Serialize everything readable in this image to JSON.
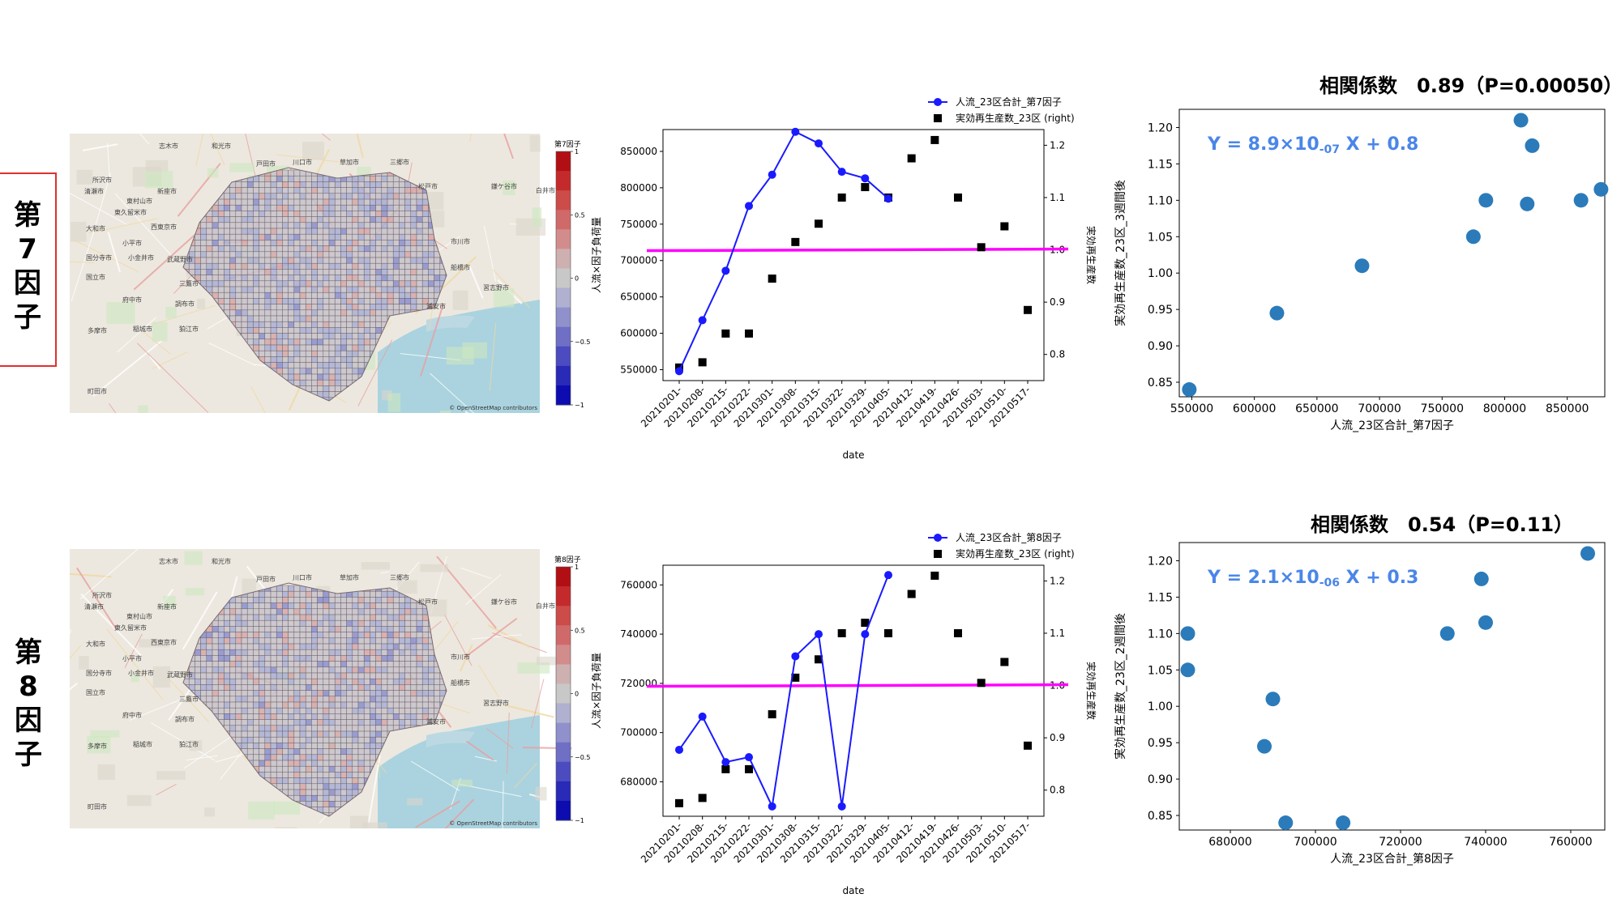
{
  "rows": [
    {
      "factor_label": [
        "第",
        "7",
        "因",
        "子"
      ],
      "boxed": true,
      "map": {
        "colorbar_title": "第7因子",
        "colorbar_ticks": [
          "1",
          "0.5",
          "0",
          "−0.5",
          "−1"
        ],
        "attribution": "© OpenStreetMap contributors",
        "place_labels": [
          "志木市",
          "和光市",
          "戸田市",
          "川口市",
          "草加市",
          "三郷市",
          "所沢市",
          "東村山市",
          "清瀬市",
          "新座市",
          "東久留米市",
          "大和市",
          "西東京市",
          "小平市",
          "国分寺市",
          "小金井市",
          "武蔵野市",
          "三鷹市",
          "国立市",
          "府中市",
          "調布市",
          "狛江市",
          "多摩市",
          "稲城市",
          "町田市",
          "松戸市",
          "市川市",
          "船橋市",
          "浦安市",
          "習志野市",
          "鎌ケ谷市",
          "白井市"
        ]
      },
      "timeseries": {
        "legend": [
          "人流_23区合計_第7因子",
          "実効再生産数_23区 (right)"
        ],
        "xlabel": "date",
        "ylabel_left": "人流×因子負荷量",
        "ylabel_right": "実効再生産数",
        "left_ticks": [
          "550000",
          "600000",
          "650000",
          "700000",
          "750000",
          "800000",
          "850000"
        ],
        "right_ticks": [
          "0.8",
          "0.9",
          "1.0",
          "1.1",
          "1.2"
        ],
        "date_ticks": [
          "20210201-",
          "20210208-",
          "20210215-",
          "20210222-",
          "20210301-",
          "20210308-",
          "20210315-",
          "20210322-",
          "20210329-",
          "20210405-",
          "20210412-",
          "20210419-",
          "20210426-",
          "20210503-",
          "20210510-",
          "20210517-"
        ]
      },
      "corr_title": "相関係数　0.89（P=0.00050）",
      "scatter": {
        "equation": [
          "Y = 8.9×10",
          "-07",
          " X + 0.8"
        ],
        "xlabel": "人流_23区合計_第7因子",
        "ylabel": "実効再生産数_23区_3週間後",
        "x_ticks": [
          "550000",
          "600000",
          "650000",
          "700000",
          "750000",
          "800000",
          "850000"
        ],
        "y_ticks": [
          "0.85",
          "0.90",
          "0.95",
          "1.00",
          "1.05",
          "1.10",
          "1.15",
          "1.20"
        ]
      }
    },
    {
      "factor_label": [
        "第",
        "8",
        "因",
        "子"
      ],
      "boxed": false,
      "map": {
        "colorbar_title": "第8因子",
        "colorbar_ticks": [
          "1",
          "0.5",
          "0",
          "−0.5",
          "−1"
        ],
        "attribution": "© OpenStreetMap contributors",
        "place_labels": [
          "志木市",
          "和光市",
          "戸田市",
          "川口市",
          "草加市",
          "三郷市",
          "所沢市",
          "東村山市",
          "清瀬市",
          "新座市",
          "東久留米市",
          "大和市",
          "西東京市",
          "小平市",
          "国分寺市",
          "小金井市",
          "武蔵野市",
          "三鷹市",
          "国立市",
          "府中市",
          "調布市",
          "狛江市",
          "多摩市",
          "稲城市",
          "町田市",
          "松戸市",
          "市川市",
          "船橋市",
          "浦安市",
          "習志野市",
          "鎌ケ谷市",
          "白井市"
        ]
      },
      "timeseries": {
        "legend": [
          "人流_23区合計_第8因子",
          "実効再生産数_23区 (right)"
        ],
        "xlabel": "date",
        "ylabel_left": "人流×因子負荷量",
        "ylabel_right": "実効再生産数",
        "left_ticks": [
          "680000",
          "700000",
          "720000",
          "740000",
          "760000"
        ],
        "right_ticks": [
          "0.8",
          "0.9",
          "1.0",
          "1.1",
          "1.2"
        ],
        "date_ticks": [
          "20210201-",
          "20210208-",
          "20210215-",
          "20210222-",
          "20210301-",
          "20210308-",
          "20210315-",
          "20210322-",
          "20210329-",
          "20210405-",
          "20210412-",
          "20210419-",
          "20210426-",
          "20210503-",
          "20210510-",
          "20210517-"
        ]
      },
      "corr_title": "相関係数　0.54（P=0.11）",
      "scatter": {
        "equation": [
          "Y = 2.1×10",
          "-06",
          " X + 0.3"
        ],
        "xlabel": "人流_23区合計_第8因子",
        "ylabel": "実効再生産数_23区_2週間後",
        "x_ticks": [
          "680000",
          "700000",
          "720000",
          "740000",
          "760000"
        ],
        "y_ticks": [
          "0.85",
          "0.90",
          "0.95",
          "1.00",
          "1.05",
          "1.10",
          "1.15",
          "1.20"
        ]
      }
    }
  ],
  "chart_data": [
    {
      "type": "line",
      "x": [
        "20210201-",
        "20210208-",
        "20210215-",
        "20210222-",
        "20210301-",
        "20210308-",
        "20210315-",
        "20210322-",
        "20210329-",
        "20210405-"
      ],
      "series": [
        {
          "name": "人流_23区合計_第7因子",
          "axis": "left",
          "values": [
            548000,
            618000,
            686000,
            775000,
            818000,
            877000,
            861000,
            822000,
            813000,
            785000
          ]
        }
      ],
      "ylim": [
        535000,
        880000
      ],
      "xlabel": "date",
      "ylabel": "人流×因子負荷量",
      "legend_position": "top-right",
      "color": "#1a1aff"
    },
    {
      "type": "scatter",
      "x": [
        "20210201-",
        "20210208-",
        "20210215-",
        "20210222-",
        "20210301-",
        "20210308-",
        "20210315-",
        "20210322-",
        "20210329-",
        "20210405-",
        "20210412-",
        "20210419-",
        "20210426-",
        "20210503-",
        "20210510-",
        "20210517-"
      ],
      "series": [
        {
          "name": "実効再生産数_23区 (right)",
          "axis": "right",
          "values": [
            0.775,
            0.785,
            0.84,
            0.84,
            0.945,
            1.015,
            1.05,
            1.1,
            1.12,
            1.1,
            1.175,
            1.21,
            1.1,
            1.005,
            1.045,
            0.885
          ]
        }
      ],
      "ylim_right": [
        0.75,
        1.23
      ],
      "reference_line": {
        "value": 1.0,
        "axis": "right",
        "color": "#ff00ff"
      },
      "ylabel": "実効再生産数"
    },
    {
      "type": "scatter",
      "x": [
        548000,
        618000,
        686000,
        775000,
        785000,
        813000,
        818000,
        822000,
        861000,
        877000
      ],
      "y": [
        0.84,
        0.945,
        1.01,
        1.05,
        1.1,
        1.21,
        1.095,
        1.175,
        1.1,
        1.115
      ],
      "fit": {
        "slope": 8.9e-07,
        "intercept": 0.8,
        "x_range": [
          548000,
          877000
        ],
        "color": "#2b7bba"
      },
      "xlim": [
        540000,
        880000
      ],
      "ylim": [
        0.83,
        1.225
      ],
      "xlabel": "人流_23区合計_第7因子",
      "ylabel": "実効再生産数_23区_3週間後",
      "color": "#2b7bba"
    },
    {
      "type": "line",
      "x": [
        "20210201-",
        "20210208-",
        "20210215-",
        "20210222-",
        "20210301-",
        "20210308-",
        "20210315-",
        "20210322-",
        "20210329-",
        "20210405-"
      ],
      "series": [
        {
          "name": "人流_23区合計_第8因子",
          "axis": "left",
          "values": [
            693000,
            706500,
            688000,
            690000,
            670000,
            731000,
            740000,
            670000,
            740000,
            764000
          ]
        }
      ],
      "ylim": [
        666000,
        768000
      ],
      "xlabel": "date",
      "ylabel": "人流×因子負荷量",
      "legend_position": "top-right",
      "color": "#1a1aff"
    },
    {
      "type": "scatter",
      "x": [
        "20210201-",
        "20210208-",
        "20210215-",
        "20210222-",
        "20210301-",
        "20210308-",
        "20210315-",
        "20210322-",
        "20210329-",
        "20210405-",
        "20210412-",
        "20210419-",
        "20210426-",
        "20210503-",
        "20210510-",
        "20210517-"
      ],
      "series": [
        {
          "name": "実効再生産数_23区 (right)",
          "axis": "right",
          "values": [
            0.775,
            0.785,
            0.84,
            0.84,
            0.945,
            1.015,
            1.05,
            1.1,
            1.12,
            1.1,
            1.175,
            1.21,
            1.1,
            1.005,
            1.045,
            0.885
          ]
        }
      ],
      "ylim_right": [
        0.75,
        1.23
      ],
      "reference_line": {
        "value": 1.0,
        "axis": "right",
        "color": "#ff00ff"
      },
      "ylabel": "実効再生産数"
    },
    {
      "type": "scatter",
      "x": [
        670000,
        670000,
        688000,
        690000,
        693000,
        706500,
        731000,
        739000,
        740000,
        764000
      ],
      "y": [
        1.05,
        1.1,
        0.945,
        1.01,
        0.84,
        0.84,
        1.1,
        1.175,
        1.115,
        1.21
      ],
      "fit": {
        "slope": 2.1e-06,
        "intercept": 0.3,
        "x_range": [
          670000,
          764000
        ],
        "color": "#2b7bba"
      },
      "xlim": [
        668000,
        768000
      ],
      "ylim": [
        0.83,
        1.225
      ],
      "xlabel": "人流_23区合計_第8因子",
      "ylabel": "実効再生産数_23区_2週間後",
      "color": "#2b7bba"
    }
  ]
}
